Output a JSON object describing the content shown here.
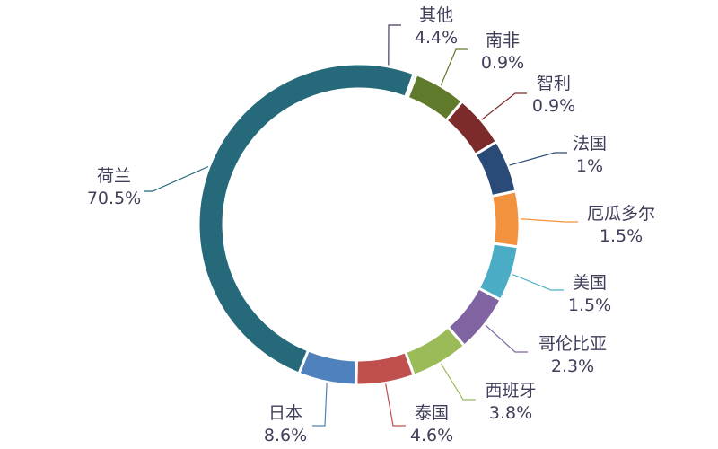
{
  "chart_data": {
    "type": "pie",
    "donut": true,
    "title": "",
    "order": "clockwise from top",
    "slices": [
      {
        "name": "其他",
        "value_label": "4.4%",
        "value": 4.4,
        "color": "#4a3a5e"
      },
      {
        "name": "南非",
        "value_label": "0.9%",
        "value": 0.9,
        "color": "#5f7a2b"
      },
      {
        "name": "智利",
        "value_label": "0.9%",
        "value": 0.9,
        "color": "#7d2a2a"
      },
      {
        "name": "法国",
        "value_label": "1%",
        "value": 1.0,
        "color": "#2a4a78"
      },
      {
        "name": "厄瓜多尔",
        "value_label": "1.5%",
        "value": 1.5,
        "color": "#f3923e"
      },
      {
        "name": "美国",
        "value_label": "1.5%",
        "value": 1.5,
        "color": "#4bacc6"
      },
      {
        "name": "哥伦比亚",
        "value_label": "2.3%",
        "value": 2.3,
        "color": "#8064a2"
      },
      {
        "name": "西班牙",
        "value_label": "3.8%",
        "value": 3.8,
        "color": "#9bbb59"
      },
      {
        "name": "泰国",
        "value_label": "4.6%",
        "value": 4.6,
        "color": "#c0504d"
      },
      {
        "name": "日本",
        "value_label": "8.6%",
        "value": 8.6,
        "color": "#4f81bd"
      },
      {
        "name": "荷兰",
        "value_label": "70.5%",
        "value": 70.5,
        "color": "#25697a"
      }
    ]
  }
}
